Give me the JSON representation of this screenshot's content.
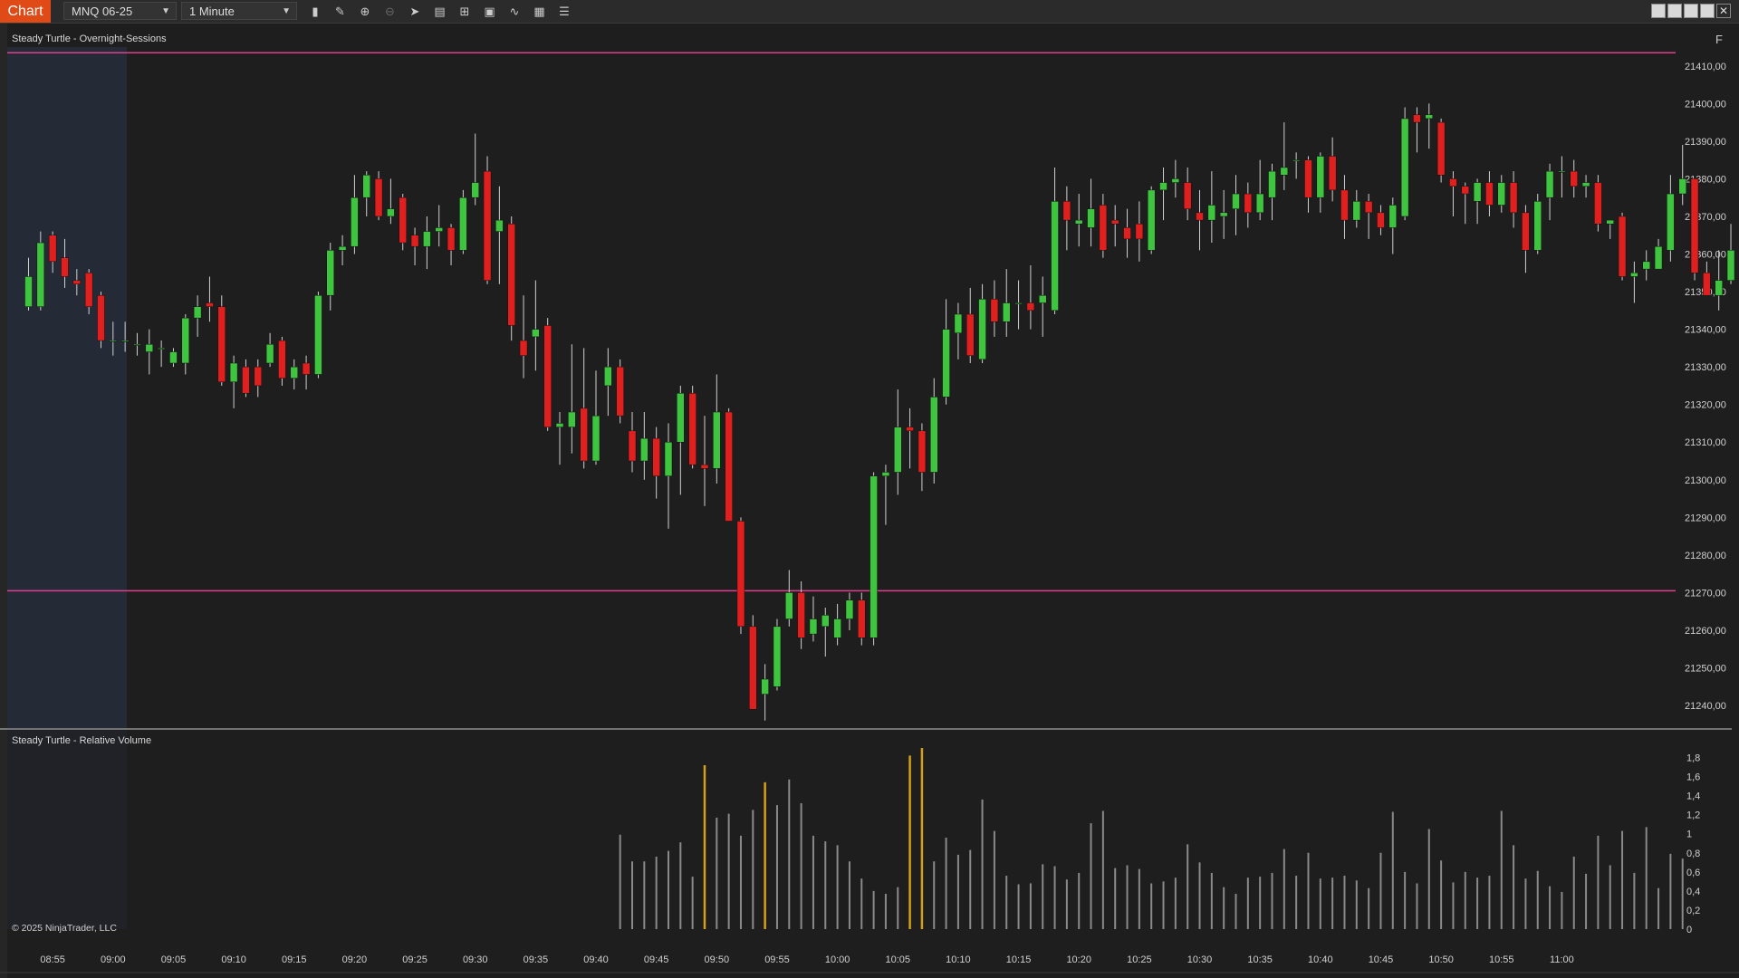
{
  "toolbar": {
    "tab_label": "Chart",
    "instrument": "MNQ 06-25",
    "interval": "1 Minute",
    "icons": [
      "bars-type-icon",
      "draw-pen-icon",
      "zoom-in-icon",
      "zoom-out-icon",
      "pointer-icon",
      "templates-icon",
      "properties-icon",
      "data-box-icon",
      "strategies-icon",
      "indicators-icon",
      "tabs-list-icon"
    ]
  },
  "price_panel": {
    "title": "Steady Turtle - Overnight-Sessions",
    "f_label": "F",
    "overnight_high": 21413.5,
    "overnight_low": 21270.5,
    "session_line_color": "#e0408f",
    "overnight_shade_color": "#242a36"
  },
  "volume_panel": {
    "title": "Steady Turtle - Relative Volume",
    "highlight_color": "#d4a017",
    "bar_color": "#8a8a8a"
  },
  "copyright": "© 2025 NinjaTrader, LLC",
  "colors": {
    "up": "#3ec43e",
    "down": "#e0201f",
    "background": "#1e1e1e"
  },
  "chart_data": {
    "type": "candlestick",
    "price_axis": {
      "min": 21234,
      "max": 21415,
      "ticks": [
        "21410,00",
        "21400,00",
        "21390,00",
        "21380,00",
        "21370,00",
        "21360,00",
        "21350,00",
        "21340,00",
        "21330,00",
        "21320,00",
        "21310,00",
        "21300,00",
        "21290,00",
        "21280,00",
        "21270,00",
        "21260,00",
        "21250,00",
        "21240,00"
      ]
    },
    "volume_axis": {
      "min": 0,
      "max": 1.9,
      "ticks": [
        "1,8",
        "1,6",
        "1,4",
        "1,2",
        "1",
        "0,8",
        "0,6",
        "0,4",
        "0,2",
        "0"
      ]
    },
    "time_labels": [
      "08:55",
      "09:00",
      "09:05",
      "09:10",
      "09:15",
      "09:20",
      "09:25",
      "09:30",
      "09:35",
      "09:40",
      "09:45",
      "09:50",
      "09:55",
      "10:00",
      "10:05",
      "10:10",
      "10:15",
      "10:20",
      "10:25",
      "10:30",
      "10:35",
      "10:40",
      "10:45",
      "10:50",
      "10:55",
      "11:00"
    ],
    "first_bar_minute": "08:53",
    "candles": [
      [
        21346,
        21354,
        21345,
        21359
      ],
      [
        21346,
        21363,
        21345,
        21366
      ],
      [
        21365,
        21358,
        21355,
        21366
      ],
      [
        21359,
        21354,
        21351,
        21364
      ],
      [
        21353,
        21352,
        21349,
        21356
      ],
      [
        21355,
        21346,
        21344,
        21356
      ],
      [
        21349,
        21337,
        21335,
        21350
      ],
      [
        21337,
        21337,
        21333,
        21342
      ],
      [
        21337,
        21337,
        21334,
        21342
      ],
      [
        21336,
        21336,
        21333,
        21339
      ],
      [
        21334,
        21336,
        21328,
        21340
      ],
      [
        21335,
        21335,
        21330,
        21337
      ],
      [
        21331,
        21334,
        21330,
        21335
      ],
      [
        21331,
        21343,
        21328,
        21344
      ],
      [
        21343,
        21346,
        21338,
        21349
      ],
      [
        21347,
        21346,
        21342,
        21354
      ],
      [
        21346,
        21326,
        21325,
        21349
      ],
      [
        21326,
        21331,
        21319,
        21333
      ],
      [
        21330,
        21323,
        21322,
        21332
      ],
      [
        21330,
        21325,
        21322,
        21332
      ],
      [
        21331,
        21336,
        21330,
        21339
      ],
      [
        21337,
        21327,
        21325,
        21338
      ],
      [
        21327,
        21330,
        21324,
        21332
      ],
      [
        21331,
        21328,
        21324,
        21333
      ],
      [
        21328,
        21349,
        21327,
        21350
      ],
      [
        21349,
        21361,
        21345,
        21363
      ],
      [
        21361,
        21362,
        21357,
        21365
      ],
      [
        21362,
        21375,
        21360,
        21381
      ],
      [
        21375,
        21381,
        21370,
        21382
      ],
      [
        21380,
        21370,
        21369,
        21382
      ],
      [
        21370,
        21372,
        21368,
        21380
      ],
      [
        21375,
        21363,
        21361,
        21376
      ],
      [
        21365,
        21362,
        21357,
        21367
      ],
      [
        21362,
        21366,
        21356,
        21370
      ],
      [
        21366,
        21367,
        21362,
        21373
      ],
      [
        21367,
        21361,
        21357,
        21368
      ],
      [
        21361,
        21375,
        21360,
        21377
      ],
      [
        21375,
        21379,
        21373,
        21392
      ],
      [
        21382,
        21353,
        21352,
        21386
      ],
      [
        21366,
        21369,
        21352,
        21378
      ],
      [
        21368,
        21341,
        21337,
        21370
      ],
      [
        21337,
        21333,
        21327,
        21349
      ],
      [
        21338,
        21340,
        21329,
        21353
      ],
      [
        21341,
        21314,
        21313,
        21343
      ],
      [
        21314,
        21315,
        21304,
        21318
      ],
      [
        21314,
        21318,
        21307,
        21336
      ],
      [
        21319,
        21305,
        21303,
        21335
      ],
      [
        21305,
        21317,
        21304,
        21329
      ],
      [
        21325,
        21330,
        21317,
        21335
      ],
      [
        21330,
        21317,
        21315,
        21332
      ],
      [
        21313,
        21305,
        21302,
        21318
      ],
      [
        21305,
        21311,
        21300,
        21318
      ],
      [
        21311,
        21301,
        21295,
        21314
      ],
      [
        21301,
        21310,
        21287,
        21315
      ],
      [
        21310,
        21323,
        21296,
        21325
      ],
      [
        21323,
        21304,
        21303,
        21325
      ],
      [
        21304,
        21303,
        21293,
        21317
      ],
      [
        21303,
        21318,
        21299,
        21328
      ],
      [
        21318,
        21289,
        21289,
        21319
      ],
      [
        21289,
        21261,
        21259,
        21290
      ],
      [
        21261,
        21239,
        21239,
        21264
      ],
      [
        21243,
        21247,
        21236,
        21251
      ],
      [
        21245,
        21261,
        21244,
        21263
      ],
      [
        21263,
        21270,
        21261,
        21276
      ],
      [
        21270,
        21258,
        21255,
        21273
      ],
      [
        21259,
        21263,
        21257,
        21269
      ],
      [
        21261,
        21264,
        21253,
        21266
      ],
      [
        21258,
        21263,
        21256,
        21267
      ],
      [
        21263,
        21268,
        21260,
        21270
      ],
      [
        21268,
        21258,
        21256,
        21270
      ],
      [
        21258,
        21301,
        21256,
        21302
      ],
      [
        21301,
        21302,
        21288,
        21304
      ],
      [
        21302,
        21314,
        21296,
        21324
      ],
      [
        21314,
        21313,
        21303,
        21319
      ],
      [
        21313,
        21302,
        21297,
        21315
      ],
      [
        21302,
        21322,
        21299,
        21327
      ],
      [
        21322,
        21340,
        21320,
        21348
      ],
      [
        21339,
        21344,
        21332,
        21347
      ],
      [
        21344,
        21333,
        21331,
        21351
      ],
      [
        21332,
        21348,
        21331,
        21352
      ],
      [
        21348,
        21342,
        21338,
        21353
      ],
      [
        21342,
        21347,
        21338,
        21356
      ],
      [
        21347,
        21347,
        21340,
        21353
      ],
      [
        21347,
        21345,
        21340,
        21357
      ],
      [
        21347,
        21349,
        21338,
        21354
      ],
      [
        21345,
        21374,
        21344,
        21383
      ],
      [
        21374,
        21369,
        21361,
        21378
      ],
      [
        21368,
        21369,
        21362,
        21376
      ],
      [
        21367,
        21372,
        21362,
        21380
      ],
      [
        21373,
        21361,
        21359,
        21376
      ],
      [
        21369,
        21368,
        21362,
        21373
      ],
      [
        21367,
        21364,
        21359,
        21372
      ],
      [
        21368,
        21364,
        21358,
        21374
      ],
      [
        21361,
        21377,
        21360,
        21378
      ],
      [
        21377,
        21379,
        21369,
        21383
      ],
      [
        21379,
        21380,
        21375,
        21385
      ],
      [
        21379,
        21372,
        21369,
        21383
      ],
      [
        21371,
        21369,
        21361,
        21377
      ],
      [
        21369,
        21373,
        21363,
        21382
      ],
      [
        21370,
        21371,
        21364,
        21377
      ],
      [
        21372,
        21376,
        21365,
        21381
      ],
      [
        21376,
        21371,
        21367,
        21379
      ],
      [
        21371,
        21376,
        21369,
        21385
      ],
      [
        21375,
        21382,
        21369,
        21384
      ],
      [
        21381,
        21383,
        21377,
        21395
      ],
      [
        21385,
        21385,
        21380,
        21387
      ],
      [
        21385,
        21375,
        21371,
        21386
      ],
      [
        21375,
        21386,
        21371,
        21387
      ],
      [
        21386,
        21377,
        21374,
        21391
      ],
      [
        21377,
        21369,
        21364,
        21381
      ],
      [
        21369,
        21374,
        21367,
        21377
      ],
      [
        21374,
        21371,
        21364,
        21376
      ],
      [
        21371,
        21367,
        21365,
        21373
      ],
      [
        21367,
        21373,
        21360,
        21375
      ],
      [
        21370,
        21396,
        21369,
        21399
      ],
      [
        21397,
        21395,
        21387,
        21399
      ],
      [
        21396,
        21397,
        21388,
        21400
      ],
      [
        21395,
        21381,
        21379,
        21396
      ],
      [
        21380,
        21378,
        21370,
        21382
      ],
      [
        21378,
        21376,
        21368,
        21379
      ],
      [
        21374,
        21379,
        21368,
        21380
      ],
      [
        21379,
        21373,
        21370,
        21382
      ],
      [
        21373,
        21379,
        21371,
        21381
      ],
      [
        21379,
        21371,
        21367,
        21382
      ],
      [
        21371,
        21361,
        21355,
        21373
      ],
      [
        21361,
        21374,
        21360,
        21376
      ],
      [
        21375,
        21382,
        21369,
        21384
      ],
      [
        21382,
        21382,
        21375,
        21386
      ],
      [
        21382,
        21378,
        21375,
        21385
      ],
      [
        21378,
        21379,
        21375,
        21381
      ],
      [
        21379,
        21368,
        21366,
        21381
      ],
      [
        21368,
        21369,
        21364,
        21369
      ],
      [
        21370,
        21354,
        21353,
        21371
      ],
      [
        21354,
        21355,
        21347,
        21358
      ],
      [
        21356,
        21358,
        21353,
        21361
      ],
      [
        21356,
        21362,
        21356,
        21364
      ],
      [
        21361,
        21376,
        21358,
        21381
      ],
      [
        21376,
        21380,
        21373,
        21389
      ],
      [
        21380,
        21355,
        21353,
        21380
      ],
      [
        21355,
        21349,
        21349,
        21358
      ],
      [
        21349,
        21353,
        21345,
        21361
      ],
      [
        21353,
        21361,
        21352,
        21368
      ]
    ],
    "relative_volume": [
      0,
      0,
      0,
      0,
      0,
      0,
      0,
      0,
      0,
      0,
      0,
      0,
      0,
      0,
      0,
      0,
      0,
      0,
      0,
      0,
      0,
      0,
      0,
      0,
      0,
      0,
      0,
      0,
      0,
      0,
      0,
      0,
      0,
      0,
      0,
      0,
      0,
      0,
      0,
      0,
      0,
      0,
      0,
      0,
      0,
      0,
      0,
      0,
      0,
      0.99,
      0.71,
      0.71,
      0.76,
      0.82,
      0.91,
      0.55,
      1.72,
      1.17,
      1.21,
      0.98,
      1.25,
      1.54,
      1.3,
      1.57,
      1.32,
      0.98,
      0.92,
      0.88,
      0.71,
      0.53,
      0.4,
      0.37,
      0.44,
      1.82,
      1.9,
      0.71,
      0.96,
      0.78,
      0.83,
      1.36,
      1.03,
      0.56,
      0.47,
      0.48,
      0.68,
      0.66,
      0.52,
      0.59,
      1.11,
      1.24,
      0.64,
      0.67,
      0.63,
      0.48,
      0.5,
      0.54,
      0.89,
      0.7,
      0.59,
      0.44,
      0.37,
      0.54,
      0.55,
      0.59,
      0.84,
      0.56,
      0.8,
      0.53,
      0.54,
      0.56,
      0.51,
      0.43,
      0.8,
      1.23,
      0.6,
      0.48,
      1.05,
      0.72,
      0.49,
      0.6,
      0.54,
      0.56,
      1.24,
      0.88,
      0.53,
      0.61,
      0.45,
      0.39,
      0.76,
      0.58,
      0.98,
      0.67,
      1.03,
      0.59,
      1.07,
      0.43,
      0.79,
      0.74
    ],
    "highlight_bars": [
      56,
      61,
      73,
      74
    ]
  }
}
